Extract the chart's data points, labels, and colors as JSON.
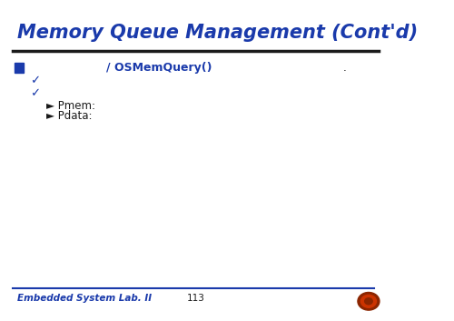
{
  "title": "Memory Queue Management (Cont'd)",
  "title_color": "#1a3aab",
  "title_fontsize": 15,
  "bg_color": "#ffffff",
  "separator_color": "#1a1a1a",
  "bullet_color": "#1a3aab",
  "bullet1_text": "/ OSMemQuery()",
  "bullet1_color": "#1a3aab",
  "arrow1_text": "► Pmem:",
  "arrow2_text": "► Pdata:",
  "text_color": "#1a1a1a",
  "dot_text": ".",
  "footer_left": "Embedded System Lab. II",
  "footer_center": "113",
  "footer_color": "#1a3aab",
  "footer_line_color": "#1a3aab",
  "check_color": "#1a3aab",
  "body_fontsize": 8.5,
  "footer_fontsize": 7.5
}
